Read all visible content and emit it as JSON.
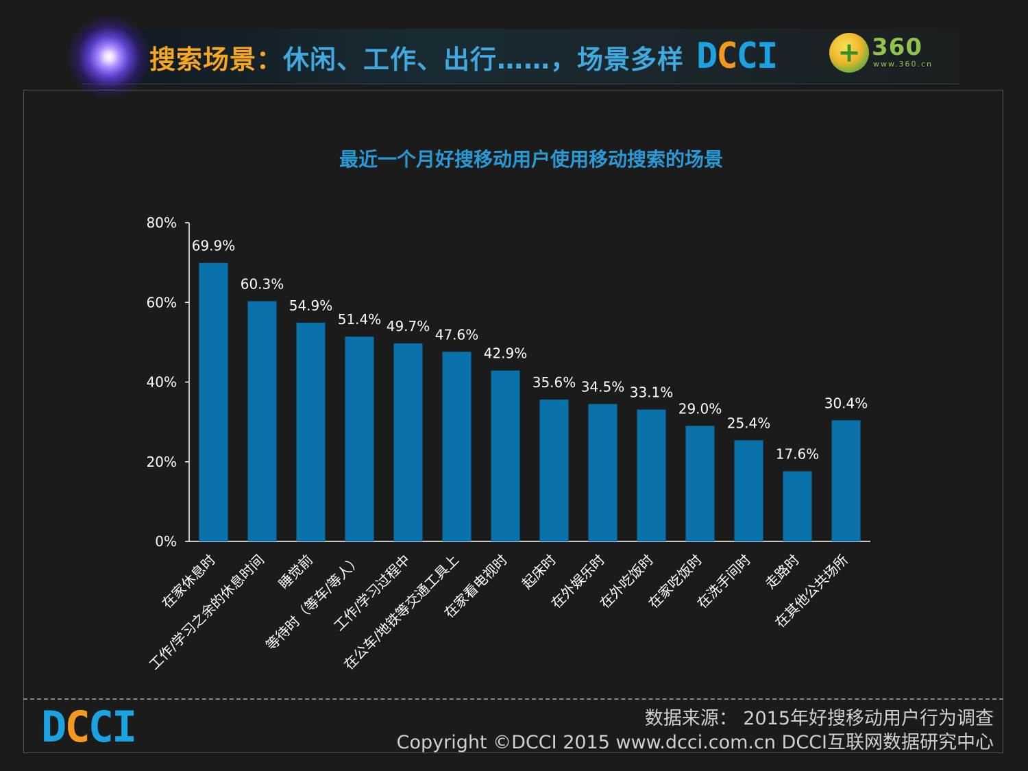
{
  "header": {
    "title_part1": "搜索场景：",
    "title_part2": "休闲、工作、出行……，场景多样",
    "logo_dcci": "DCCI",
    "logo_360": "360",
    "logo_360_url": "www.360.cn",
    "logo_360_plus": "+"
  },
  "footer": {
    "logo_dcci": "DCCI",
    "source": "数据来源： 2015年好搜移动用户行为调查",
    "copyright": "Copyright ©DCCI 2015    www.dcci.com.cn    DCCI互联网数据研究中心"
  },
  "colors": {
    "bar": "#0a72aa",
    "chart_title": "#2a9ad6",
    "title_orange": "#f5a623",
    "title_blue": "#3fa9e0",
    "logo_blue": "#1aa3e0",
    "logo_orange": "#f39a1e"
  },
  "chart_data": {
    "type": "bar",
    "title": "最近一个月好搜移动用户使用移动搜索的场景",
    "categories": [
      "在家休息时",
      "工作/学习之余的休息时间",
      "睡觉前",
      "等待时（等车/等人）",
      "工作/学习过程中",
      "在公车/地铁等交通工具上",
      "在家看电视时",
      "起床时",
      "在外娱乐时",
      "在外吃饭时",
      "在家吃饭时",
      "在洗手间时",
      "走路时",
      "在其他公共场所"
    ],
    "values": [
      69.9,
      60.3,
      54.9,
      51.4,
      49.7,
      47.6,
      42.9,
      35.6,
      34.5,
      33.1,
      29.0,
      25.4,
      17.6,
      30.4
    ],
    "value_labels": [
      "69.9%",
      "60.3%",
      "54.9%",
      "51.4%",
      "49.7%",
      "47.6%",
      "42.9%",
      "35.6%",
      "34.5%",
      "33.1%",
      "29.0%",
      "25.4%",
      "17.6%",
      "30.4%"
    ],
    "ylim": [
      0,
      80
    ],
    "yticks": [
      0,
      20,
      40,
      60,
      80
    ],
    "ytick_labels": [
      "0%",
      "20%",
      "40%",
      "60%",
      "80%"
    ],
    "grid": false,
    "legend": "none"
  }
}
